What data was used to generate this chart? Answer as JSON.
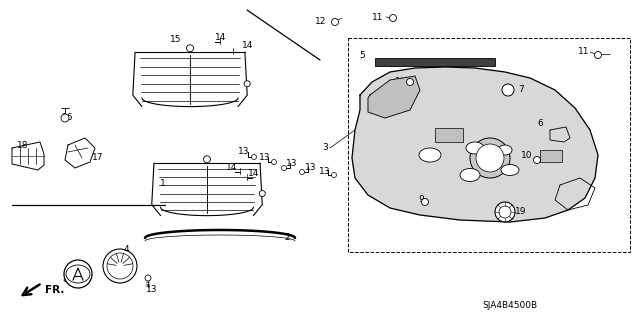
{
  "bg_color": "#ffffff",
  "diagram_code": "SJA4B4500B",
  "fig_w": 6.4,
  "fig_h": 3.19,
  "dpi": 100
}
